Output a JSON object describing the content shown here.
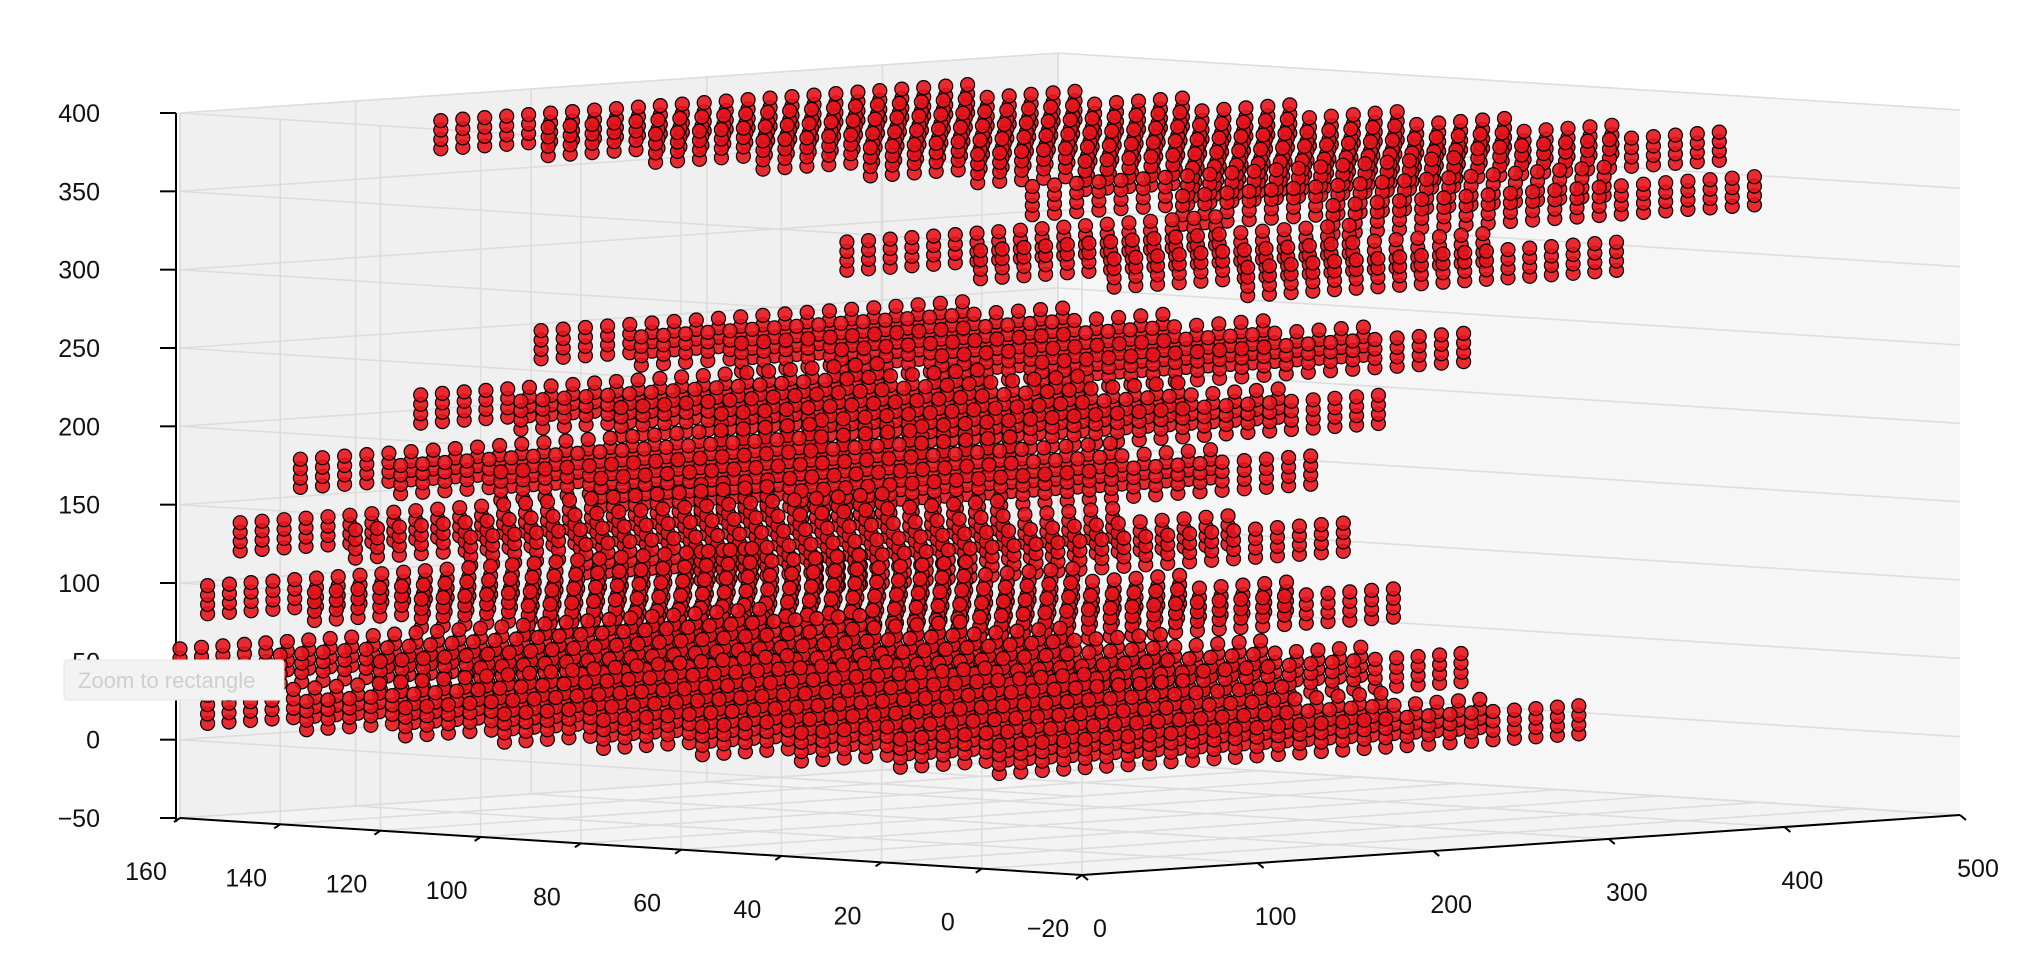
{
  "chart_data": {
    "type": "scatter",
    "projection": "3d",
    "title": "",
    "xlabel": "",
    "ylabel": "",
    "zlabel": "",
    "grid": true,
    "marker_color": "#e8141c",
    "marker_edge_color": "#000000",
    "pane_color": "#f2f2f2",
    "grid_color": "#dddddd",
    "xlim": [
      0,
      500
    ],
    "ylim": [
      -20,
      160
    ],
    "zlim": [
      -50,
      400
    ],
    "x_ticks": [
      "0",
      "100",
      "200",
      "300",
      "400",
      "500"
    ],
    "y_ticks": [
      "160",
      "140",
      "120",
      "100",
      "80",
      "60",
      "40",
      "20",
      "0",
      "−20"
    ],
    "z_ticks": [
      "400",
      "350",
      "300",
      "250",
      "200",
      "150",
      "100",
      "50",
      "0",
      "−50"
    ],
    "layers": [
      {
        "z": 370,
        "x": [
          120,
          420
        ],
        "y": [
          150,
          0
        ]
      },
      {
        "z": 340,
        "x": [
          200,
          440
        ],
        "y": [
          60,
          0
        ]
      },
      {
        "z": 300,
        "x": [
          180,
          390
        ],
        "y": [
          90,
          10
        ]
      },
      {
        "z": 240,
        "x": [
          120,
          360
        ],
        "y": [
          130,
          30
        ]
      },
      {
        "z": 200,
        "x": [
          80,
          340
        ],
        "y": [
          140,
          40
        ]
      },
      {
        "z": 160,
        "x": [
          40,
          330
        ],
        "y": [
          150,
          50
        ]
      },
      {
        "z": 120,
        "x": [
          20,
          320
        ],
        "y": [
          155,
          40
        ]
      },
      {
        "z": 80,
        "x": [
          10,
          320
        ],
        "y": [
          158,
          30
        ]
      },
      {
        "z": 40,
        "x": [
          0,
          330
        ],
        "y": [
          160,
          20
        ]
      },
      {
        "z": 10,
        "x": [
          10,
          340
        ],
        "y": [
          158,
          0
        ]
      }
    ]
  },
  "tooltip": {
    "text": "Zoom to rectangle"
  }
}
